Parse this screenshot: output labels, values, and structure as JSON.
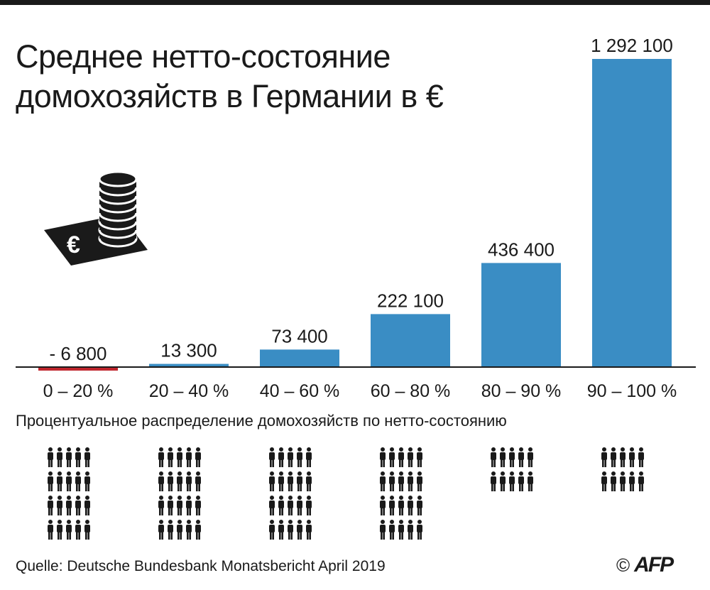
{
  "title": "Среднее нетто-состояние домохозяйств в Германии в €",
  "subtitle": "Процентуальное распределение домохозяйств по нетто-состоянию",
  "source": "Quelle: Deutsche Bundesbank Monatsbericht April 2019",
  "credit": "©",
  "logo_text": "AFP",
  "colors": {
    "positive_bar": "#3a8dc4",
    "negative_bar": "#c0262d",
    "text": "#1a1a1a"
  },
  "icons": [
    "money-stack-icon",
    "person-icon"
  ],
  "chart_data": {
    "type": "bar",
    "title": "Среднее нетто-состояние домохозяйств в Германии в €",
    "categories": [
      "0 – 20 %",
      "20 – 40 %",
      "40 – 60 %",
      "60 – 80 %",
      "80 – 90 %",
      "90 – 100 %"
    ],
    "values": [
      -6800,
      13300,
      73400,
      222100,
      436400,
      1292100
    ],
    "value_labels": [
      "- 6 800",
      "13 300",
      "73 400",
      "222 100",
      "436 400",
      "1 292 100"
    ],
    "ylim": [
      -6800,
      1292100
    ],
    "grid": false,
    "legend": "none",
    "household_share_pct": [
      20,
      20,
      20,
      20,
      10,
      10
    ]
  }
}
